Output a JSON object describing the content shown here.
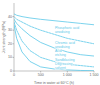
{
  "chart_data": {
    "type": "line",
    "xlabel": "Time in water at 60°C (h)",
    "ylabel": "Joint strength (MPa)",
    "xlim": [
      0,
      1500
    ],
    "ylim": [
      0,
      50
    ],
    "xticks": [
      0,
      500,
      {
        "value": 1000,
        "label": "1 000"
      },
      {
        "value": 1500,
        "label": "1 500"
      }
    ],
    "yticks": [
      0,
      10,
      20,
      30,
      40
    ],
    "grid": false,
    "color": "#5bc8e8",
    "x": [
      0,
      50,
      150,
      300,
      500,
      750,
      1000,
      1250,
      1500
    ],
    "series": [
      {
        "name": "Phosphoric acid\nanodising",
        "line_style": "solid",
        "values": [
          42,
          41,
          40,
          39,
          38,
          37,
          36,
          35,
          34
        ]
      },
      {
        "name": "Chromic acid\nanodising",
        "line_style": "dashed",
        "values": [
          40,
          38,
          36,
          33,
          30,
          27,
          24,
          22,
          20
        ]
      },
      {
        "name": "Acid\netching",
        "line_style": "solid",
        "values": [
          38,
          35,
          31,
          26,
          21,
          17,
          14,
          12,
          11
        ]
      },
      {
        "name": "Sandblasting",
        "line_style": "dashed",
        "values": [
          36,
          30,
          22,
          15,
          10,
          7,
          5,
          4,
          3
        ]
      },
      {
        "name": "Degreasing\nsolvent",
        "line_style": "solid",
        "values": [
          34,
          24,
          14,
          7,
          3,
          1.5,
          0.8,
          0.4,
          0.2
        ]
      }
    ]
  }
}
